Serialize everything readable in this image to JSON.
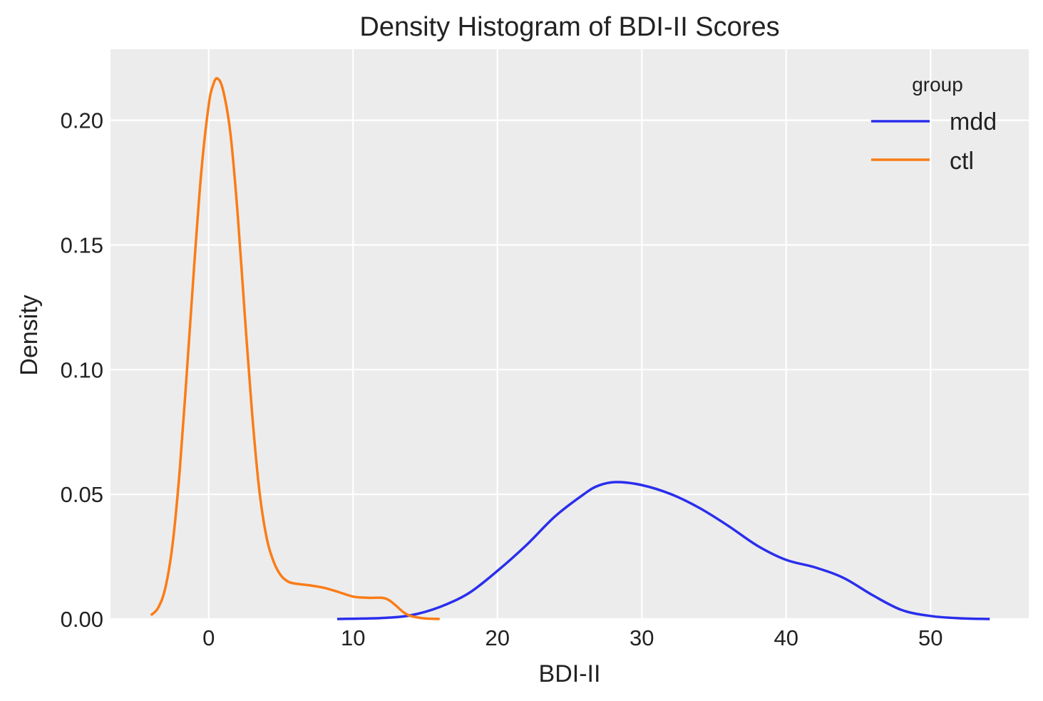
{
  "chart_data": {
    "type": "line",
    "title": "Density Histogram of BDI-II Scores",
    "xlabel": "BDI-II",
    "ylabel": "Density",
    "xlim": [
      -6.8,
      56.8
    ],
    "ylim": [
      0,
      0.2285
    ],
    "xticks": [
      0,
      10,
      20,
      30,
      40,
      50
    ],
    "xtick_labels": [
      "0",
      "10",
      "20",
      "30",
      "40",
      "50"
    ],
    "yticks": [
      0,
      0.05,
      0.1,
      0.15,
      0.2
    ],
    "ytick_labels": [
      "0.00",
      "0.05",
      "0.10",
      "0.15",
      "0.20"
    ],
    "grid": true,
    "legend": {
      "title": "group",
      "placement": "top-right"
    },
    "series": [
      {
        "name": "mdd",
        "color": "#2a2eec",
        "x": [
          8.9,
          12,
          14,
          16,
          18,
          20,
          22,
          24,
          26,
          27,
          28.2,
          30,
          32,
          34,
          36,
          38,
          40,
          42,
          44,
          46,
          48,
          50,
          52,
          54.1
        ],
        "y": [
          0,
          0.0004,
          0.0015,
          0.0048,
          0.0103,
          0.0193,
          0.0296,
          0.0412,
          0.0501,
          0.0535,
          0.0549,
          0.0537,
          0.0501,
          0.0445,
          0.0373,
          0.0294,
          0.0237,
          0.0207,
          0.0164,
          0.0095,
          0.0036,
          0.0012,
          0.0003,
          0
        ]
      },
      {
        "name": "ctl",
        "color": "#fa7c17",
        "x": [
          -4,
          -3.5,
          -3,
          -2.5,
          -2,
          -1.5,
          -1,
          -0.5,
          0,
          0.3,
          0.6,
          1,
          1.5,
          2,
          2.5,
          3,
          3.5,
          4,
          4.5,
          5,
          5.5,
          6,
          7,
          8,
          9,
          10,
          11,
          12,
          12.5,
          13,
          13.5,
          14,
          15,
          16
        ],
        "y": [
          0.0015,
          0.0045,
          0.0125,
          0.03,
          0.06,
          0.1,
          0.142,
          0.18,
          0.206,
          0.214,
          0.2168,
          0.212,
          0.195,
          0.163,
          0.122,
          0.083,
          0.052,
          0.033,
          0.023,
          0.0175,
          0.015,
          0.0142,
          0.0135,
          0.0125,
          0.0108,
          0.009,
          0.0085,
          0.0085,
          0.0075,
          0.0052,
          0.0027,
          0.0012,
          0.0002,
          0
        ]
      }
    ]
  }
}
